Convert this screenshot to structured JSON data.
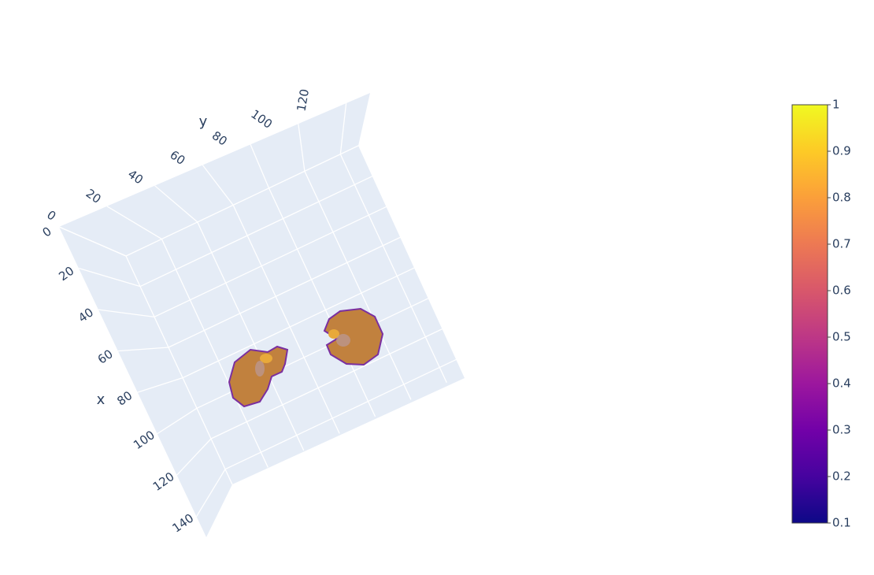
{
  "chart_data": {
    "type": "volume",
    "xaxis_title": "x",
    "yaxis_title": "y",
    "xlim": [
      0,
      150
    ],
    "xticks": [
      0,
      20,
      40,
      60,
      80,
      100,
      120,
      140
    ],
    "ylim": [
      0,
      130
    ],
    "yticks": [
      0,
      20,
      40,
      60,
      80,
      100,
      120
    ],
    "colorbar": {
      "cmin": 0.1,
      "cmax": 1,
      "ticks": [
        0.1,
        0.2,
        0.3,
        0.4,
        0.5,
        0.6,
        0.7,
        0.8,
        0.9,
        1
      ],
      "colorscale": [
        "#0d0887",
        "#46039f",
        "#7201a8",
        "#9c179e",
        "#bd3786",
        "#d8576b",
        "#ed7953",
        "#fb9f3a",
        "#fdca26",
        "#f0f921"
      ]
    }
  }
}
